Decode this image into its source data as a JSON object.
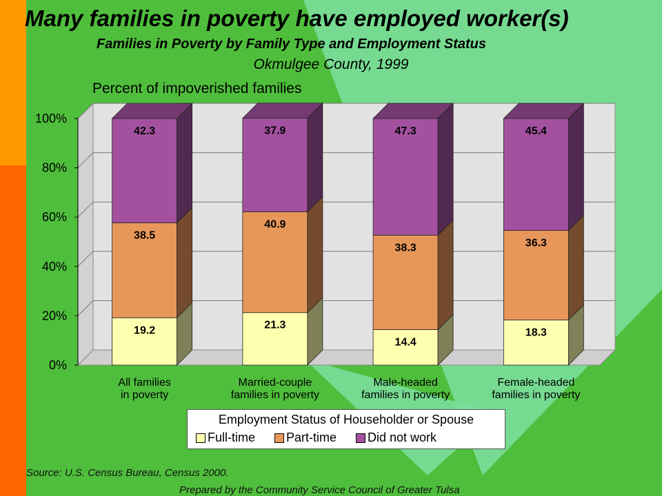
{
  "header": {
    "title": "Many families in poverty have employed worker(s)",
    "subtitle": "Families in Poverty by Family Type and Employment Status",
    "subtitle2": "Okmulgee County, 1999"
  },
  "chart_data": {
    "type": "bar",
    "stacked": true,
    "categories": [
      "All families in poverty",
      "Married-couple families in poverty",
      "Male-headed families in poverty",
      "Female-headed families in poverty"
    ],
    "category_lines": [
      [
        "All families",
        "in poverty"
      ],
      [
        "Married-couple",
        "families in poverty"
      ],
      [
        "Male-headed",
        "families in poverty"
      ],
      [
        "Female-headed",
        "families in poverty"
      ]
    ],
    "series": [
      {
        "name": "Full-time",
        "values": [
          19.2,
          21.3,
          14.4,
          18.3
        ],
        "color": "#ffffb0"
      },
      {
        "name": "Part-time",
        "values": [
          38.5,
          40.9,
          38.3,
          36.3
        ],
        "color": "#e8975a"
      },
      {
        "name": "Did not work",
        "values": [
          42.3,
          37.9,
          47.3,
          45.4
        ],
        "color": "#a3519f"
      }
    ],
    "ylabel": "Percent of impoverished families",
    "ylim": [
      0,
      100
    ],
    "yticks": [
      "0%",
      "20%",
      "40%",
      "60%",
      "80%",
      "100%"
    ],
    "legend_title": "Employment Status of Householder or Spouse",
    "legend_position": "bottom",
    "grid": true
  },
  "footer": {
    "source": "Source:  U.S. Census Bureau, Census 2000.",
    "prepared": "Prepared by the Community Service Council of Greater Tulsa"
  },
  "colors": {
    "background": "#4fbe3c",
    "stripe_orange": "#ff9900",
    "stripe_red": "#ff6600",
    "diamond": "#7ddfa0"
  }
}
